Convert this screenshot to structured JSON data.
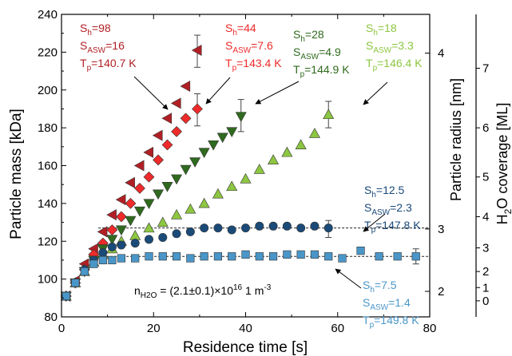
{
  "chart_data": {
    "type": "scatter",
    "xlabel": "Residence time [s]",
    "ylabel": "Particle mass [kDa]",
    "xlim": [
      0,
      80
    ],
    "ylim": [
      80,
      240
    ],
    "xticks": [
      0,
      20,
      40,
      60,
      80
    ],
    "yticks": [
      80,
      100,
      120,
      140,
      160,
      180,
      200,
      220,
      240
    ],
    "right_axis_1": {
      "label": "Particle radius [nm]",
      "ticks": [
        {
          "label": "2",
          "mass": 93.5
        },
        {
          "label": "3",
          "mass": 126.5
        },
        {
          "label": "4",
          "mass": 219.5
        }
      ]
    },
    "right_axis_2": {
      "label_prefix": "H",
      "label_sub": "2",
      "label_suffix": "O coverage [ML]",
      "ticks": [
        {
          "label": "0",
          "mass": 88.5
        },
        {
          "label": "1",
          "mass": 95.5
        },
        {
          "label": "2",
          "mass": 104.0
        },
        {
          "label": "3",
          "mass": 116.5
        },
        {
          "label": "4",
          "mass": 133.0
        },
        {
          "label": "5",
          "mass": 154.0
        },
        {
          "label": "6",
          "mass": 180.0
        },
        {
          "label": "7",
          "mass": 211.5
        }
      ]
    },
    "series": [
      {
        "marker": "triangle-left",
        "color": "#b11f24",
        "x": [
          1,
          3,
          5,
          7,
          9,
          11,
          13,
          15,
          17,
          19,
          21,
          23,
          25,
          27,
          29.5
        ],
        "y": [
          91,
          99,
          108,
          116,
          125,
          134,
          142,
          151,
          160,
          167,
          176,
          185,
          193,
          202,
          221
        ],
        "err": [
          {
            "x": 29.5,
            "lo": 212,
            "hi": 229
          }
        ],
        "label": [
          "S_h=98",
          "S_ASW=16",
          "T_p=140.7 K"
        ]
      },
      {
        "marker": "diamond",
        "color": "#ee2a2a",
        "x": [
          1,
          3,
          5,
          7,
          9,
          11,
          13,
          15,
          17,
          19,
          21,
          23,
          25,
          27,
          29.5
        ],
        "y": [
          91,
          98,
          105,
          113,
          119,
          126,
          133,
          140,
          148,
          154,
          163,
          171,
          178,
          185,
          190
        ],
        "err": [
          {
            "x": 29.5,
            "lo": 181,
            "hi": 198
          }
        ],
        "label": [
          "S_h=44",
          "S_ASW=7.6",
          "T_p=143.4 K"
        ]
      },
      {
        "marker": "triangle-down",
        "color": "#2f6a1e",
        "x": [
          1,
          3,
          5,
          7,
          9,
          11,
          13,
          15,
          17,
          19,
          21,
          23,
          25,
          27,
          29,
          31,
          33,
          35,
          37,
          39
        ],
        "y": [
          91,
          98,
          104,
          110,
          116,
          121,
          126,
          131,
          136,
          140,
          145,
          149,
          153,
          158,
          162,
          167,
          171,
          175,
          178,
          186
        ],
        "err": [
          {
            "x": 39,
            "lo": 178,
            "hi": 195
          }
        ],
        "label": [
          "S_h=28",
          "S_ASW=4.9",
          "T_p=144.9 K"
        ]
      },
      {
        "marker": "triangle-up",
        "color": "#8dc641",
        "x": [
          1,
          3,
          5,
          7,
          9,
          11,
          13,
          16,
          19,
          22,
          25,
          28,
          31,
          34,
          37,
          40,
          43,
          46,
          49,
          52,
          55,
          58
        ],
        "y": [
          91,
          98,
          104,
          109,
          113,
          116,
          120,
          123,
          127,
          130,
          134,
          137,
          140,
          145,
          149,
          153,
          158,
          163,
          167,
          171,
          177,
          187
        ],
        "err": [
          {
            "x": 58,
            "lo": 180,
            "hi": 194
          }
        ],
        "label": [
          "S_h=18",
          "S_ASW=3.3",
          "T_p=146.4 K"
        ]
      },
      {
        "marker": "circle",
        "color": "#1a4a78",
        "x": [
          1,
          3,
          5,
          7,
          9,
          11,
          13,
          16,
          19,
          22,
          25,
          28,
          31,
          34,
          37,
          40,
          43,
          46,
          49,
          52,
          55,
          58
        ],
        "y": [
          91,
          98,
          105,
          110,
          114,
          117,
          118,
          119,
          121,
          122,
          124,
          125,
          127,
          127,
          126,
          127,
          128,
          128,
          128,
          127,
          128,
          127
        ],
        "err": [
          {
            "x": 58,
            "lo": 122,
            "hi": 131
          }
        ],
        "fit_y": 127,
        "label": [
          "S_h=12.5",
          "S_ASW=2.3",
          "T_p=147.8 K"
        ]
      },
      {
        "marker": "square",
        "color": "#4a96c8",
        "x": [
          1,
          3,
          5,
          7,
          9,
          11,
          13,
          16,
          19,
          22,
          25,
          28,
          31,
          34,
          37,
          40,
          43,
          46,
          49,
          52,
          55,
          58,
          61,
          65,
          69,
          73,
          77
        ],
        "y": [
          91,
          98,
          104,
          108,
          110,
          110,
          111,
          111,
          112,
          112,
          112,
          111,
          112,
          112,
          112,
          113,
          112,
          112,
          113,
          113,
          113,
          112,
          111,
          115,
          112,
          112,
          112
        ],
        "err": [
          {
            "x": 77,
            "lo": 108,
            "hi": 116
          }
        ],
        "fit_y": 112,
        "label": [
          "S_h=7.5",
          "S_ASW=1.4",
          "T_p=149.8 K"
        ]
      }
    ],
    "annotation": "n_H2O = (2.1±0.1)×10^16 1 m^-3"
  }
}
